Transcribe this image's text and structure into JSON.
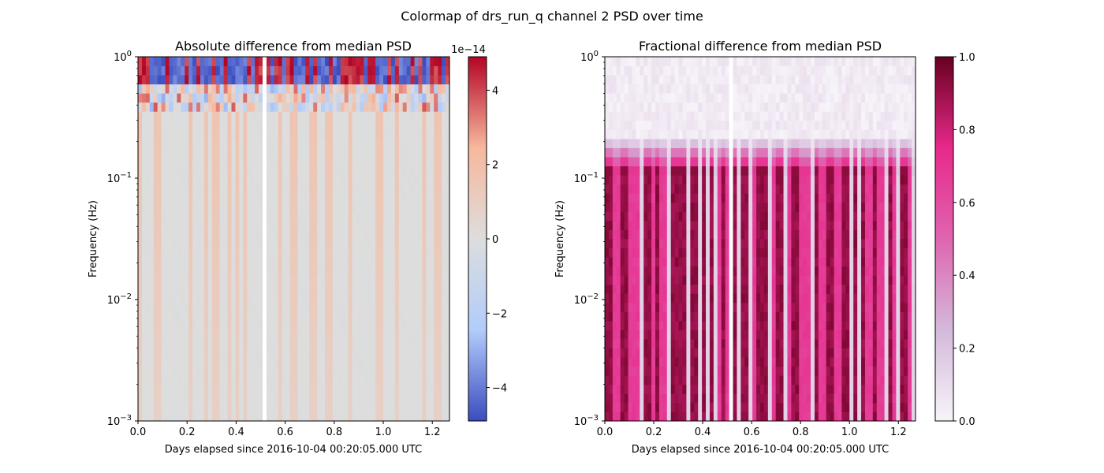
{
  "figure": {
    "suptitle": "Colormap of drs_run_q channel 2 PSD over time"
  },
  "chart_data": [
    {
      "type": "heatmap",
      "title": "Absolute difference from median PSD",
      "xlabel": "Days elapsed since 2016-10-04 00:20:05.000 UTC",
      "ylabel": "Frequency (Hz)",
      "xlim": [
        0.0,
        1.27
      ],
      "ylim": [
        0.001,
        1.0
      ],
      "yscale": "log",
      "x_ticks": [
        0.0,
        0.2,
        0.4,
        0.6,
        0.8,
        1.0,
        1.2
      ],
      "x_tick_labels": [
        "0.0",
        "0.2",
        "0.4",
        "0.6",
        "0.8",
        "1.0",
        "1.2"
      ],
      "y_ticks": [
        {
          "value": 0.001,
          "base": "10",
          "exp": "−3"
        },
        {
          "value": 0.01,
          "base": "10",
          "exp": "−2"
        },
        {
          "value": 0.1,
          "base": "10",
          "exp": "−1"
        },
        {
          "value": 1.0,
          "base": "10",
          "exp": "0"
        }
      ],
      "colormap": "coolwarm",
      "colors": [
        "#3b4cc0",
        "#b2ccfb",
        "#dddddd",
        "#f7b89c",
        "#b40426"
      ],
      "colorbar": {
        "range": [
          -4.9,
          4.9
        ],
        "ticks": [
          -4,
          -2,
          0,
          2,
          4
        ],
        "tick_labels": [
          "−4",
          "−2",
          "0",
          "2",
          "4"
        ],
        "offset_label": "1e−14"
      },
      "n_columns": 80,
      "gap_column_at_days": 0.515,
      "description_of_data": "Near zero at low frequencies with faint warm vertical stripes; strong alternating red/blue values above ~0.5 Hz"
    },
    {
      "type": "heatmap",
      "title": "Fractional difference from median PSD",
      "xlabel": "Days elapsed since 2016-10-04 00:20:05.000 UTC",
      "ylabel": "Frequency (Hz)",
      "xlim": [
        0.0,
        1.27
      ],
      "ylim": [
        0.001,
        1.0
      ],
      "yscale": "log",
      "x_ticks": [
        0.0,
        0.2,
        0.4,
        0.6,
        0.8,
        1.0,
        1.2
      ],
      "x_tick_labels": [
        "0.0",
        "0.2",
        "0.4",
        "0.6",
        "0.8",
        "1.0",
        "1.2"
      ],
      "y_ticks": [
        {
          "value": 0.001,
          "base": "10",
          "exp": "−3"
        },
        {
          "value": 0.01,
          "base": "10",
          "exp": "−2"
        },
        {
          "value": 0.1,
          "base": "10",
          "exp": "−1"
        },
        {
          "value": 1.0,
          "base": "10",
          "exp": "0"
        }
      ],
      "colormap": "PuRd",
      "colors": [
        "#f7f4f9",
        "#d4b9da",
        "#df65b0",
        "#e7298a",
        "#67001f"
      ],
      "colorbar": {
        "range": [
          0.0,
          1.0
        ],
        "ticks": [
          0.0,
          0.2,
          0.4,
          0.6,
          0.8,
          1.0
        ],
        "tick_labels": [
          "0.0",
          "0.2",
          "0.4",
          "0.6",
          "0.8",
          "1.0"
        ]
      },
      "n_columns": 80,
      "gap_column_at_days": 0.515,
      "description_of_data": "High fractional differences (0.6–1.0) in vertical stripes below ~0.2 Hz; near zero above ~0.3 Hz"
    }
  ]
}
